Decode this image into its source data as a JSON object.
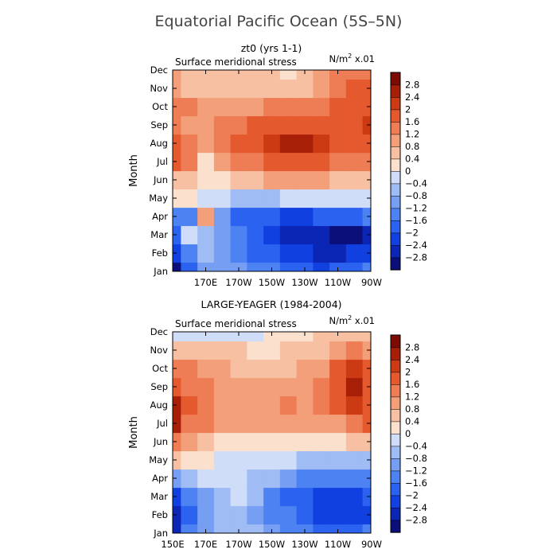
{
  "title": "Equatorial Pacific Ocean (5S–5N)",
  "colorbar": {
    "levels": [
      -3.2,
      -2.8,
      -2.4,
      -2.0,
      -1.6,
      -1.2,
      -0.8,
      -0.4,
      0,
      0.4,
      0.8,
      1.2,
      1.6,
      2.0,
      2.4,
      2.8,
      3.2
    ],
    "labels": [
      "−2.8",
      "−2.4",
      "−2",
      "−1.6",
      "−1.2",
      "−0.8",
      "−0.4",
      "0",
      "0.4",
      "0.8",
      "1.2",
      "1.6",
      "2",
      "2.4",
      "2.8"
    ],
    "colors": [
      "#0a0f7a",
      "#0b26b4",
      "#1140e0",
      "#2b62f0",
      "#4d82f3",
      "#769ef2",
      "#9fbcf4",
      "#cfddf8",
      "#fbe1cd",
      "#f7c0a2",
      "#f39f7a",
      "#ee7c54",
      "#e5592f",
      "#cc3a14",
      "#a81f08",
      "#7c0c03"
    ]
  },
  "chart_data": [
    {
      "type": "heatmap",
      "title": "zt0 (yrs 1-1)",
      "subtitle": "Surface meridional stress",
      "units": "N/m² x.01",
      "units_main": "N/m",
      "units_sup": "2",
      "units_tail": " x.01",
      "ylabel": "Month",
      "xlabel": "",
      "xlim": [
        150,
        270
      ],
      "ylim": [
        1,
        12
      ],
      "x_ticks": [
        170,
        190,
        210,
        230,
        250,
        270
      ],
      "x_tick_labels": [
        "170E",
        "170W",
        "150W",
        "130W",
        "110W",
        "90W"
      ],
      "y_ticks": [
        1,
        2,
        3,
        4,
        5,
        6,
        7,
        8,
        9,
        10,
        11,
        12
      ],
      "y_tick_labels": [
        "Jan",
        "Feb",
        "Mar",
        "Apr",
        "May",
        "Jun",
        "Jul",
        "Aug",
        "Sep",
        "Oct",
        "Nov",
        "Dec"
      ],
      "x": [
        150,
        160,
        170,
        180,
        190,
        200,
        210,
        220,
        230,
        240,
        250,
        260,
        270
      ],
      "y": [
        1,
        2,
        3,
        4,
        5,
        6,
        7,
        8,
        9,
        10,
        11,
        12
      ],
      "z": [
        [
          -3.0,
          -2.0,
          -1.2,
          -1.0,
          -1.2,
          -1.4,
          -1.6,
          -1.8,
          -2.0,
          -2.2,
          -2.0,
          -1.8,
          -1.6
        ],
        [
          -2.2,
          -1.4,
          -0.8,
          -1.0,
          -1.4,
          -1.8,
          -2.0,
          -2.2,
          -2.4,
          -2.6,
          -2.6,
          -2.4,
          -2.2
        ],
        [
          -1.8,
          -0.2,
          -0.6,
          -1.2,
          -1.6,
          -2.0,
          -2.2,
          -2.6,
          -2.8,
          -2.8,
          -3.0,
          -3.0,
          -2.6
        ],
        [
          -1.4,
          -1.6,
          0.8,
          -1.0,
          -1.8,
          -2.0,
          -2.0,
          -2.2,
          -2.2,
          -2.0,
          -2.0,
          -1.8,
          -1.6
        ],
        [
          0.2,
          0.2,
          -0.2,
          -0.4,
          -0.8,
          -0.6,
          -0.6,
          -0.4,
          -0.4,
          -0.4,
          -0.2,
          -0.2,
          -0.2
        ],
        [
          0.6,
          0.4,
          0.2,
          0.2,
          0.4,
          0.6,
          0.8,
          0.8,
          0.8,
          0.8,
          0.6,
          0.6,
          0.6
        ],
        [
          1.8,
          1.4,
          0.2,
          0.8,
          1.2,
          1.4,
          1.6,
          1.6,
          1.6,
          1.6,
          1.4,
          1.4,
          1.4
        ],
        [
          1.6,
          1.2,
          0.8,
          1.2,
          1.6,
          1.8,
          2.2,
          2.6,
          2.4,
          2.2,
          1.8,
          1.6,
          1.6
        ],
        [
          1.2,
          0.8,
          0.8,
          1.2,
          1.4,
          1.6,
          1.8,
          1.8,
          1.8,
          1.6,
          1.6,
          1.8,
          2.2
        ],
        [
          1.4,
          1.2,
          0.8,
          0.8,
          1.0,
          1.0,
          1.2,
          1.2,
          1.2,
          1.4,
          1.6,
          1.8,
          1.6
        ],
        [
          0.8,
          0.6,
          0.6,
          0.6,
          0.6,
          0.6,
          0.6,
          0.4,
          0.4,
          0.8,
          1.4,
          1.6,
          1.6
        ],
        [
          0.8,
          0.6,
          0.6,
          0.6,
          0.6,
          0.4,
          0.4,
          0.2,
          0.4,
          0.8,
          1.2,
          1.2,
          1.2
        ]
      ]
    },
    {
      "type": "heatmap",
      "title": "LARGE-YEAGER (1984-2004)",
      "subtitle": "Surface meridional stress",
      "units": "N/m² x.01",
      "units_main": "N/m",
      "units_sup": "2",
      "units_tail": " x.01",
      "ylabel": "Month",
      "xlabel": "",
      "xlim": [
        150,
        270
      ],
      "ylim": [
        1,
        12
      ],
      "x_ticks": [
        150,
        170,
        190,
        210,
        230,
        250,
        270
      ],
      "x_tick_labels": [
        "150E",
        "170E",
        "170W",
        "150W",
        "130W",
        "110W",
        "90W"
      ],
      "y_ticks": [
        1,
        2,
        3,
        4,
        5,
        6,
        7,
        8,
        9,
        10,
        11,
        12
      ],
      "y_tick_labels": [
        "Jan",
        "Feb",
        "Mar",
        "Apr",
        "May",
        "Jun",
        "Jul",
        "Aug",
        "Sep",
        "Oct",
        "Nov",
        "Dec"
      ],
      "x": [
        150,
        160,
        170,
        180,
        190,
        200,
        210,
        220,
        230,
        240,
        250,
        260,
        270
      ],
      "y": [
        1,
        2,
        3,
        4,
        5,
        6,
        7,
        8,
        9,
        10,
        11,
        12
      ],
      "z": [
        [
          -2.8,
          -1.6,
          -1.0,
          -0.6,
          -0.6,
          -0.8,
          -1.0,
          -1.4,
          -1.6,
          -1.8,
          -1.8,
          -1.8,
          -1.6
        ],
        [
          -2.6,
          -1.8,
          -1.2,
          -0.8,
          -0.6,
          -1.2,
          -1.4,
          -1.6,
          -2.0,
          -2.2,
          -2.4,
          -2.4,
          -2.2
        ],
        [
          -2.2,
          -1.6,
          -1.2,
          -0.6,
          -0.4,
          -0.8,
          -1.4,
          -1.8,
          -2.0,
          -2.2,
          -2.4,
          -2.4,
          -2.0
        ],
        [
          -1.2,
          -0.8,
          -0.4,
          -0.2,
          -0.2,
          -0.6,
          -0.8,
          -1.2,
          -1.4,
          -1.6,
          -1.6,
          -1.6,
          -1.4
        ],
        [
          0.4,
          0.2,
          0.2,
          -0.2,
          -0.2,
          -0.4,
          -0.4,
          -0.4,
          -0.6,
          -0.6,
          -0.6,
          -0.6,
          -0.6
        ],
        [
          1.4,
          0.8,
          0.4,
          0.2,
          0.2,
          0.2,
          0.2,
          0.2,
          0.2,
          0.2,
          0.2,
          0.4,
          0.4
        ],
        [
          2.4,
          1.4,
          1.2,
          1.0,
          0.8,
          0.8,
          0.8,
          0.8,
          0.8,
          0.8,
          1.0,
          1.4,
          1.6
        ],
        [
          2.6,
          1.6,
          1.2,
          1.0,
          0.8,
          0.8,
          1.0,
          1.2,
          1.0,
          1.2,
          1.6,
          2.0,
          1.8
        ],
        [
          1.8,
          1.4,
          1.2,
          0.8,
          0.8,
          0.8,
          0.8,
          1.0,
          1.0,
          1.2,
          1.8,
          2.4,
          1.8
        ],
        [
          1.2,
          1.2,
          1.0,
          0.8,
          0.6,
          0.6,
          0.6,
          0.6,
          0.8,
          1.0,
          1.6,
          2.0,
          1.6
        ],
        [
          0.4,
          0.6,
          0.6,
          0.6,
          0.4,
          0.2,
          0.2,
          0.4,
          0.4,
          0.6,
          0.8,
          1.2,
          1.0
        ],
        [
          -0.4,
          -0.2,
          -0.2,
          -0.2,
          -0.2,
          -0.2,
          0.2,
          0.2,
          0.2,
          0.4,
          0.4,
          0.6,
          0.4
        ]
      ]
    }
  ]
}
